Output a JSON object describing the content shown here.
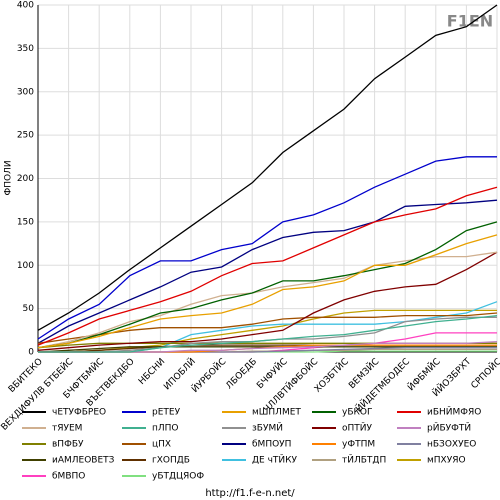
{
  "chart_data": {
    "type": "line",
    "watermark": "F1EN",
    "ylabel": "ФПОЛИ",
    "footer": "http://f1.f-e-n.net/",
    "categories": [
      "ВБИТЕКО",
      "ВЕХДИФУЛВ БТБЕЙС",
      "БЧФТБМЙС",
      "ВЪЕТВЕКДБО",
      "НБСНИ",
      "ИПОБЛЙ",
      "ЙУРБОЙС",
      "ЛБОЕДБ",
      "БЧФУЙС",
      "ЧЛЛВТЙФБОЙС",
      "ХОЗБТЙС",
      "ВЕМЗЙС",
      "ЙЙДЕТМБОДЕС",
      "ЙФБМЙС",
      "ЙЙОЗБРХТ",
      "СРПОЙС"
    ],
    "ylim": [
      0,
      400
    ],
    "yticks": [
      0,
      50,
      100,
      150,
      200,
      250,
      300,
      350,
      400
    ],
    "grid": true,
    "series": [
      {
        "name": "чЕТУФБРЕО",
        "color": "#000000",
        "values": [
          25,
          45,
          68,
          95,
          120,
          145,
          170,
          195,
          230,
          255,
          280,
          315,
          340,
          365,
          375,
          400
        ]
      },
      {
        "name": "рЕТЕУ",
        "color": "#0000cc",
        "values": [
          15,
          38,
          55,
          88,
          105,
          105,
          118,
          125,
          150,
          158,
          172,
          190,
          205,
          220,
          225,
          225
        ]
      },
      {
        "name": "мШПЛМЕТ",
        "color": "#e8a000",
        "values": [
          5,
          10,
          18,
          28,
          38,
          42,
          45,
          55,
          72,
          75,
          82,
          100,
          100,
          112,
          125,
          135
        ]
      },
      {
        "name": "уБКОГ",
        "color": "#006000",
        "values": [
          5,
          10,
          20,
          32,
          45,
          50,
          60,
          68,
          82,
          82,
          88,
          95,
          102,
          118,
          140,
          150
        ]
      },
      {
        "name": "иБНЙМФЯО",
        "color": "#e00000",
        "values": [
          8,
          22,
          38,
          48,
          58,
          70,
          88,
          102,
          105,
          120,
          135,
          150,
          158,
          165,
          180,
          190
        ]
      },
      {
        "name": "тЯУЕМ",
        "color": "#d0b090",
        "values": [
          5,
          12,
          22,
          35,
          42,
          55,
          65,
          68,
          75,
          80,
          85,
          100,
          105,
          110,
          110,
          115
        ]
      },
      {
        "name": "пЛПО",
        "color": "#40b090",
        "values": [
          0,
          0,
          0,
          0,
          5,
          8,
          10,
          12,
          15,
          18,
          20,
          25,
          30,
          35,
          38,
          42
        ]
      },
      {
        "name": "зБУМЙ",
        "color": "#909090",
        "values": [
          0,
          0,
          0,
          2,
          5,
          10,
          12,
          12,
          15,
          15,
          18,
          22,
          35,
          38,
          40,
          40
        ]
      },
      {
        "name": "оПТЙУ",
        "color": "#800000",
        "values": [
          2,
          5,
          8,
          10,
          12,
          12,
          15,
          20,
          25,
          45,
          60,
          70,
          75,
          78,
          95,
          115
        ]
      },
      {
        "name": "рЙБУФТЙ",
        "color": "#c080c0",
        "values": [
          0,
          0,
          0,
          0,
          0,
          2,
          2,
          4,
          5,
          6,
          8,
          10,
          10,
          10,
          10,
          12
        ]
      },
      {
        "name": "вПФБУ",
        "color": "#808000",
        "values": [
          5,
          8,
          10,
          10,
          10,
          10,
          10,
          10,
          10,
          10,
          10,
          10,
          10,
          10,
          10,
          10
        ]
      },
      {
        "name": "цПХ",
        "color": "#a05000",
        "values": [
          10,
          15,
          20,
          25,
          28,
          28,
          28,
          32,
          38,
          40,
          40,
          40,
          42,
          42,
          42,
          45
        ]
      },
      {
        "name": "бМПОУП",
        "color": "#000080",
        "values": [
          10,
          30,
          45,
          60,
          75,
          92,
          98,
          118,
          132,
          138,
          140,
          150,
          168,
          170,
          172,
          175
        ]
      },
      {
        "name": "уФТПМ",
        "color": "#ff8000",
        "values": [
          0,
          0,
          0,
          0,
          0,
          0,
          2,
          4,
          6,
          8,
          8,
          8,
          8,
          8,
          8,
          8
        ]
      },
      {
        "name": "нБЗОХУЕО",
        "color": "#8080a0",
        "values": [
          0,
          0,
          0,
          0,
          0,
          0,
          0,
          0,
          1,
          2,
          3,
          4,
          5,
          5,
          5,
          5
        ]
      },
      {
        "name": "иАМЛЕОВЕТЗ",
        "color": "#404000",
        "values": [
          0,
          2,
          4,
          6,
          6,
          6,
          6,
          6,
          6,
          6,
          6,
          6,
          6,
          6,
          6,
          6
        ]
      },
      {
        "name": "гХОПДБ",
        "color": "#603000",
        "values": [
          0,
          0,
          2,
          4,
          6,
          8,
          8,
          8,
          8,
          8,
          8,
          8,
          8,
          8,
          8,
          8
        ]
      },
      {
        "name": "ДЕ чТЙКУ",
        "color": "#40c0e0",
        "values": [
          0,
          0,
          0,
          0,
          5,
          20,
          25,
          30,
          32,
          32,
          32,
          32,
          35,
          40,
          45,
          58
        ]
      },
      {
        "name": "тЙЛБТДП",
        "color": "#b0a080",
        "values": [
          0,
          0,
          0,
          0,
          0,
          0,
          0,
          1,
          1,
          2,
          2,
          3,
          3,
          3,
          3,
          3
        ]
      },
      {
        "name": "мПХУЯО",
        "color": "#c0a000",
        "values": [
          0,
          0,
          2,
          5,
          8,
          15,
          20,
          25,
          30,
          38,
          45,
          48,
          48,
          48,
          48,
          48
        ]
      },
      {
        "name": "бМВПО",
        "color": "#ff40c0",
        "values": [
          0,
          0,
          0,
          0,
          0,
          0,
          0,
          0,
          2,
          5,
          8,
          10,
          15,
          22,
          22,
          22
        ]
      },
      {
        "name": "уБТДЦЯОФ",
        "color": "#80e080",
        "values": [
          0,
          0,
          0,
          0,
          0,
          0,
          0,
          0,
          0,
          0,
          1,
          1,
          1,
          1,
          1,
          1
        ]
      }
    ]
  }
}
